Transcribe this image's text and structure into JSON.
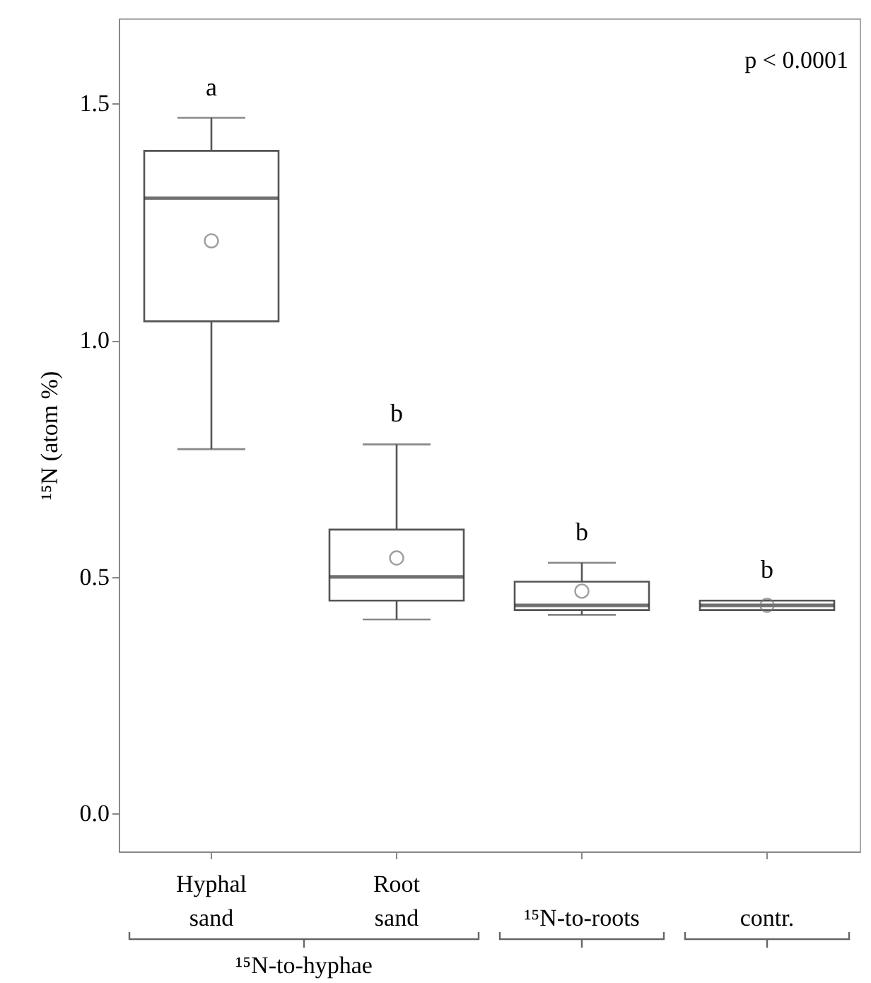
{
  "chart_data": {
    "type": "box",
    "ylabel": "¹⁵N (atom %)",
    "categories": [
      "Hyphal sand",
      "Root sand",
      "¹⁵N-to-roots",
      "contr."
    ],
    "boxes": [
      {
        "low": 0.77,
        "q1": 1.04,
        "median": 1.3,
        "q3": 1.4,
        "high": 1.47,
        "mean": 1.21
      },
      {
        "low": 0.41,
        "q1": 0.45,
        "median": 0.5,
        "q3": 0.6,
        "high": 0.78,
        "mean": 0.54
      },
      {
        "low": 0.42,
        "q1": 0.43,
        "median": 0.44,
        "q3": 0.49,
        "high": 0.53,
        "mean": 0.47
      },
      {
        "low": 0.43,
        "q1": 0.43,
        "median": 0.44,
        "q3": 0.45,
        "high": 0.45,
        "mean": 0.44
      }
    ],
    "ylim": [
      -0.08,
      1.68
    ],
    "yticks": [
      {
        "value": 0,
        "label": "0.0"
      },
      {
        "value": 0.5,
        "label": "0.5"
      },
      {
        "value": 1,
        "label": "1.0"
      },
      {
        "value": 1.5,
        "label": "1.5"
      }
    ],
    "grid": false,
    "annotations": [
      "p < 0.0001",
      "¹⁵N-to-hyphae",
      "a",
      "b",
      "b",
      "b"
    ]
  }
}
